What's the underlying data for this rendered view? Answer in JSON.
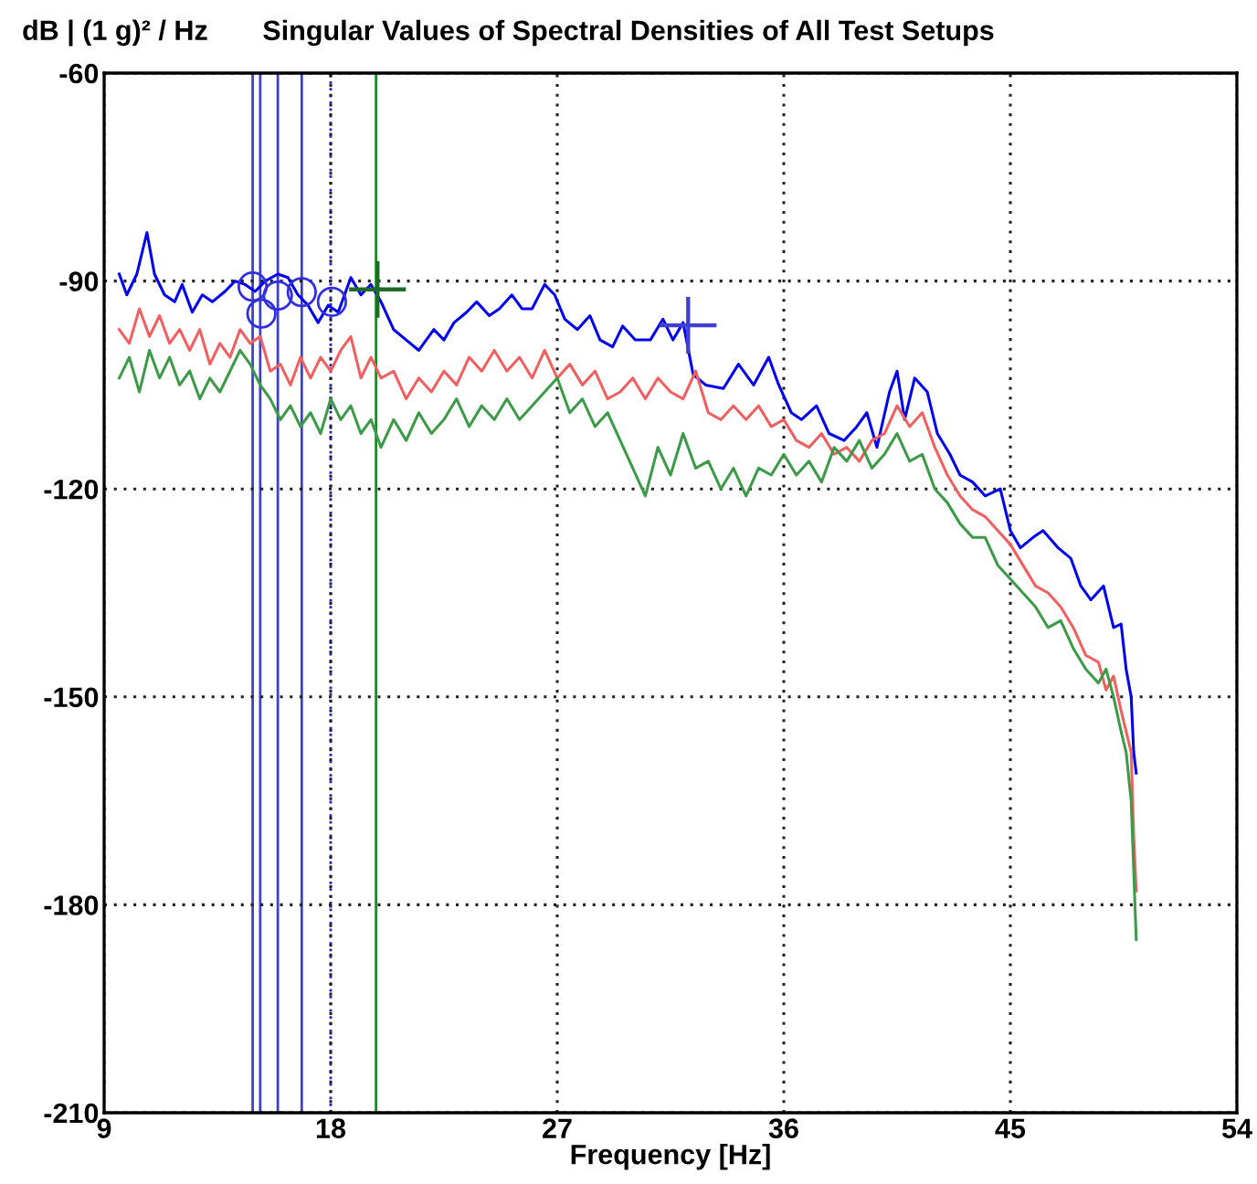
{
  "chart_data": {
    "type": "line",
    "title": "Singular Values of Spectral Densities of All Test Setups",
    "xlabel": "Frequency [Hz]",
    "ylabel": "dB | (1 g)² / Hz",
    "xlim": [
      9,
      54
    ],
    "xticks": [
      9,
      18,
      27,
      36,
      45,
      54
    ],
    "ylim": [
      -210,
      -60
    ],
    "yticks": [
      -210,
      -180,
      -150,
      -120,
      -90,
      -60
    ],
    "grid": true,
    "legend": false,
    "marker": "none",
    "line_style": "solid",
    "ref_lines": [
      {
        "axis": "x",
        "value": 14.9,
        "label": null,
        "color": "#4040d0"
      },
      {
        "axis": "x",
        "value": 15.2,
        "label": null,
        "color": "#4040d0"
      },
      {
        "axis": "x",
        "value": 15.9,
        "label": null,
        "color": "#4040d0"
      },
      {
        "axis": "x",
        "value": 16.85,
        "label": null,
        "color": "#4040d0"
      },
      {
        "axis": "x",
        "value": 18.0,
        "label": null,
        "color": "#2020c0",
        "line_style": "dotted"
      },
      {
        "axis": "x",
        "value": 19.8,
        "label": null,
        "color": "#1f8a2a"
      }
    ],
    "series": [
      {
        "color": "#0000ee",
        "x": [
          9.6,
          9.9,
          10.3,
          10.7,
          11.0,
          11.4,
          11.8,
          12.1,
          12.5,
          12.9,
          13.3,
          13.8,
          14.2,
          14.6,
          15.0,
          15.4,
          15.9,
          16.3,
          16.7,
          17.1,
          17.5,
          17.9,
          18.3,
          18.8,
          19.2,
          19.6,
          20.0,
          20.5,
          21.0,
          21.5,
          22.1,
          22.5,
          22.9,
          23.4,
          23.8,
          24.3,
          24.7,
          25.2,
          25.6,
          26.0,
          26.5,
          26.9,
          27.3,
          27.8,
          28.3,
          28.7,
          29.2,
          29.6,
          30.1,
          30.7,
          31.2,
          31.6,
          32.0,
          32.4,
          32.9,
          33.6,
          34.2,
          34.8,
          35.4,
          35.8,
          36.3,
          36.7,
          37.3,
          37.8,
          38.4,
          38.9,
          39.3,
          39.7,
          40.2,
          40.5,
          40.8,
          41.2,
          41.7,
          42.1,
          42.6,
          43.0,
          43.5,
          44.0,
          44.6,
          45.0,
          45.4,
          45.9,
          46.3,
          46.9,
          47.4,
          47.8,
          48.2,
          48.7,
          49.1,
          49.4,
          49.6,
          49.8,
          49.9,
          50.0
        ],
        "values": [
          -89,
          -92,
          -89,
          -83,
          -89,
          -92,
          -93,
          -90.5,
          -94.5,
          -92,
          -93,
          -91.5,
          -90,
          -90.5,
          -91.5,
          -90,
          -89,
          -89.5,
          -92,
          -93.5,
          -96,
          -93.5,
          -94.5,
          -89.5,
          -92,
          -90.5,
          -93,
          -97,
          -98.5,
          -100,
          -97,
          -98.5,
          -96,
          -94.5,
          -93,
          -95,
          -94,
          -92,
          -94,
          -94,
          -90.5,
          -92,
          -95.5,
          -97,
          -95,
          -98.5,
          -99.5,
          -96.5,
          -98.5,
          -98.5,
          -95.5,
          -98.5,
          -96,
          -103.5,
          -105,
          -105.5,
          -102,
          -105,
          -101,
          -105,
          -109,
          -110,
          -108,
          -112,
          -113,
          -111,
          -109,
          -114,
          -106,
          -103,
          -110,
          -104,
          -106,
          -112,
          -115,
          -118,
          -119,
          -121,
          -120,
          -126,
          -128.5,
          -127,
          -126,
          -128.5,
          -130,
          -134,
          -136,
          -134,
          -140,
          -139.5,
          -146,
          -150,
          -158,
          -161
        ]
      },
      {
        "color": "#f06060",
        "x": [
          9.6,
          10.0,
          10.4,
          10.8,
          11.2,
          11.6,
          12.0,
          12.4,
          12.8,
          13.2,
          13.6,
          14.0,
          14.4,
          14.8,
          15.2,
          15.6,
          16.0,
          16.4,
          16.8,
          17.2,
          17.6,
          18.0,
          18.4,
          18.8,
          19.2,
          19.6,
          20.0,
          20.5,
          21.0,
          21.5,
          22.0,
          22.5,
          23.0,
          23.5,
          24.0,
          24.5,
          25.0,
          25.5,
          26.0,
          26.5,
          27.0,
          27.5,
          28.0,
          28.5,
          29.0,
          29.5,
          30.0,
          30.5,
          31.0,
          31.5,
          32.0,
          32.5,
          33.0,
          33.5,
          34.0,
          34.5,
          35.0,
          35.5,
          36.0,
          36.5,
          37.0,
          37.5,
          38.0,
          38.5,
          39.0,
          39.5,
          40.0,
          40.5,
          41.0,
          41.5,
          42.0,
          42.5,
          43.0,
          43.5,
          44.0,
          44.5,
          45.0,
          45.5,
          46.0,
          46.5,
          47.0,
          47.5,
          48.0,
          48.5,
          48.8,
          49.1,
          49.4,
          49.6,
          49.8,
          49.9,
          50.0
        ],
        "values": [
          -97,
          -99,
          -94,
          -98,
          -95,
          -99,
          -97,
          -100,
          -97,
          -102,
          -99,
          -101,
          -97,
          -99,
          -98,
          -103,
          -102,
          -105,
          -101,
          -104,
          -101,
          -103,
          -100,
          -98,
          -104,
          -101,
          -104,
          -103,
          -107,
          -104,
          -106,
          -103,
          -105,
          -101,
          -103,
          -100,
          -103,
          -101,
          -104,
          -100,
          -104,
          -102,
          -105,
          -103,
          -107,
          -106,
          -104,
          -107,
          -104,
          -106,
          -107,
          -103,
          -109,
          -110,
          -108,
          -110,
          -108,
          -111,
          -110,
          -113,
          -114,
          -112,
          -115,
          -114,
          -116,
          -113,
          -112,
          -108,
          -111,
          -109,
          -114,
          -118,
          -121,
          -123,
          -124,
          -126,
          -128,
          -131,
          -134,
          -135,
          -137,
          -140,
          -144,
          -145,
          -149,
          -147,
          -152,
          -155,
          -158,
          -170,
          -178
        ]
      },
      {
        "color": "#3c9a48",
        "x": [
          9.6,
          10.0,
          10.4,
          10.8,
          11.2,
          11.6,
          12.0,
          12.4,
          12.8,
          13.2,
          13.6,
          14.0,
          14.4,
          14.8,
          15.2,
          15.6,
          16.0,
          16.4,
          16.8,
          17.2,
          17.6,
          18.0,
          18.4,
          18.8,
          19.2,
          19.6,
          20.0,
          20.5,
          21.0,
          21.5,
          22.0,
          22.5,
          23.0,
          23.5,
          24.0,
          24.5,
          25.0,
          25.5,
          26.0,
          26.5,
          27.0,
          27.5,
          28.0,
          28.5,
          29.0,
          29.5,
          30.0,
          30.5,
          31.0,
          31.5,
          32.0,
          32.5,
          33.0,
          33.5,
          34.0,
          34.5,
          35.0,
          35.5,
          36.0,
          36.5,
          37.0,
          37.5,
          38.0,
          38.5,
          39.0,
          39.5,
          40.0,
          40.5,
          41.0,
          41.5,
          42.0,
          42.5,
          43.0,
          43.5,
          44.0,
          44.5,
          45.0,
          45.5,
          46.0,
          46.5,
          47.0,
          47.5,
          48.0,
          48.5,
          48.8,
          49.1,
          49.4,
          49.6,
          49.8,
          49.9,
          50.0
        ],
        "values": [
          -104,
          -101,
          -106,
          -100,
          -104,
          -101,
          -105,
          -103,
          -107,
          -104,
          -106,
          -103,
          -100,
          -102,
          -105,
          -107,
          -110,
          -108,
          -111,
          -109,
          -112,
          -107,
          -110,
          -108,
          -112,
          -110,
          -114,
          -110,
          -113,
          -109,
          -112,
          -110,
          -107,
          -111,
          -108,
          -110,
          -107,
          -110,
          -108,
          -106,
          -104,
          -109,
          -107,
          -111,
          -109,
          -113,
          -117,
          -121,
          -114,
          -118,
          -112,
          -117,
          -116,
          -120,
          -117,
          -121,
          -117,
          -118,
          -115,
          -118,
          -116,
          -119,
          -114,
          -116,
          -113,
          -117,
          -115,
          -112,
          -116,
          -115,
          -120,
          -122,
          -125,
          -127,
          -127,
          -131,
          -133,
          -135,
          -137,
          -140,
          -139,
          -143,
          -146,
          -148,
          -146,
          -150,
          -155,
          -158,
          -165,
          -175,
          -185
        ]
      },
      {
        "type": "scatter",
        "marker": "circle",
        "color": "#3030e0",
        "x": [
          14.9,
          15.25,
          15.9,
          16.85,
          18.05
        ],
        "values": [
          -90.8,
          -94.7,
          -92.1,
          -91.6,
          -93
        ]
      },
      {
        "type": "scatter",
        "marker": "cross",
        "color": "#4040d0",
        "x": [
          32.2
        ],
        "values": [
          -96.4
        ]
      },
      {
        "type": "scatter",
        "marker": "cross",
        "color": "#1f6a2a",
        "x": [
          19.86
        ],
        "values": [
          -91.2
        ]
      }
    ]
  }
}
